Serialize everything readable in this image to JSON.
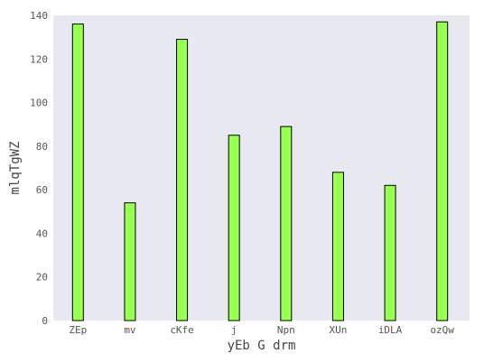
{
  "chart_data": {
    "type": "bar",
    "categories": [
      "ZEp",
      "mv",
      "cKfe",
      "j",
      "Npn",
      "XUn",
      "iDLA",
      "ozQw"
    ],
    "values": [
      136,
      54,
      129,
      85,
      89,
      68,
      62,
      137
    ],
    "title": "",
    "xlabel": "yEb G drm",
    "ylabel": "mlqTgWZ",
    "ylim": [
      0,
      140
    ],
    "yticks": [
      0,
      20,
      40,
      60,
      80,
      100,
      120,
      140
    ],
    "grid": false,
    "legend": "none",
    "colors": {
      "bar_fill": "#99ff55",
      "bar_edge": "#000000",
      "plot_background": "#e8e8f0"
    }
  }
}
